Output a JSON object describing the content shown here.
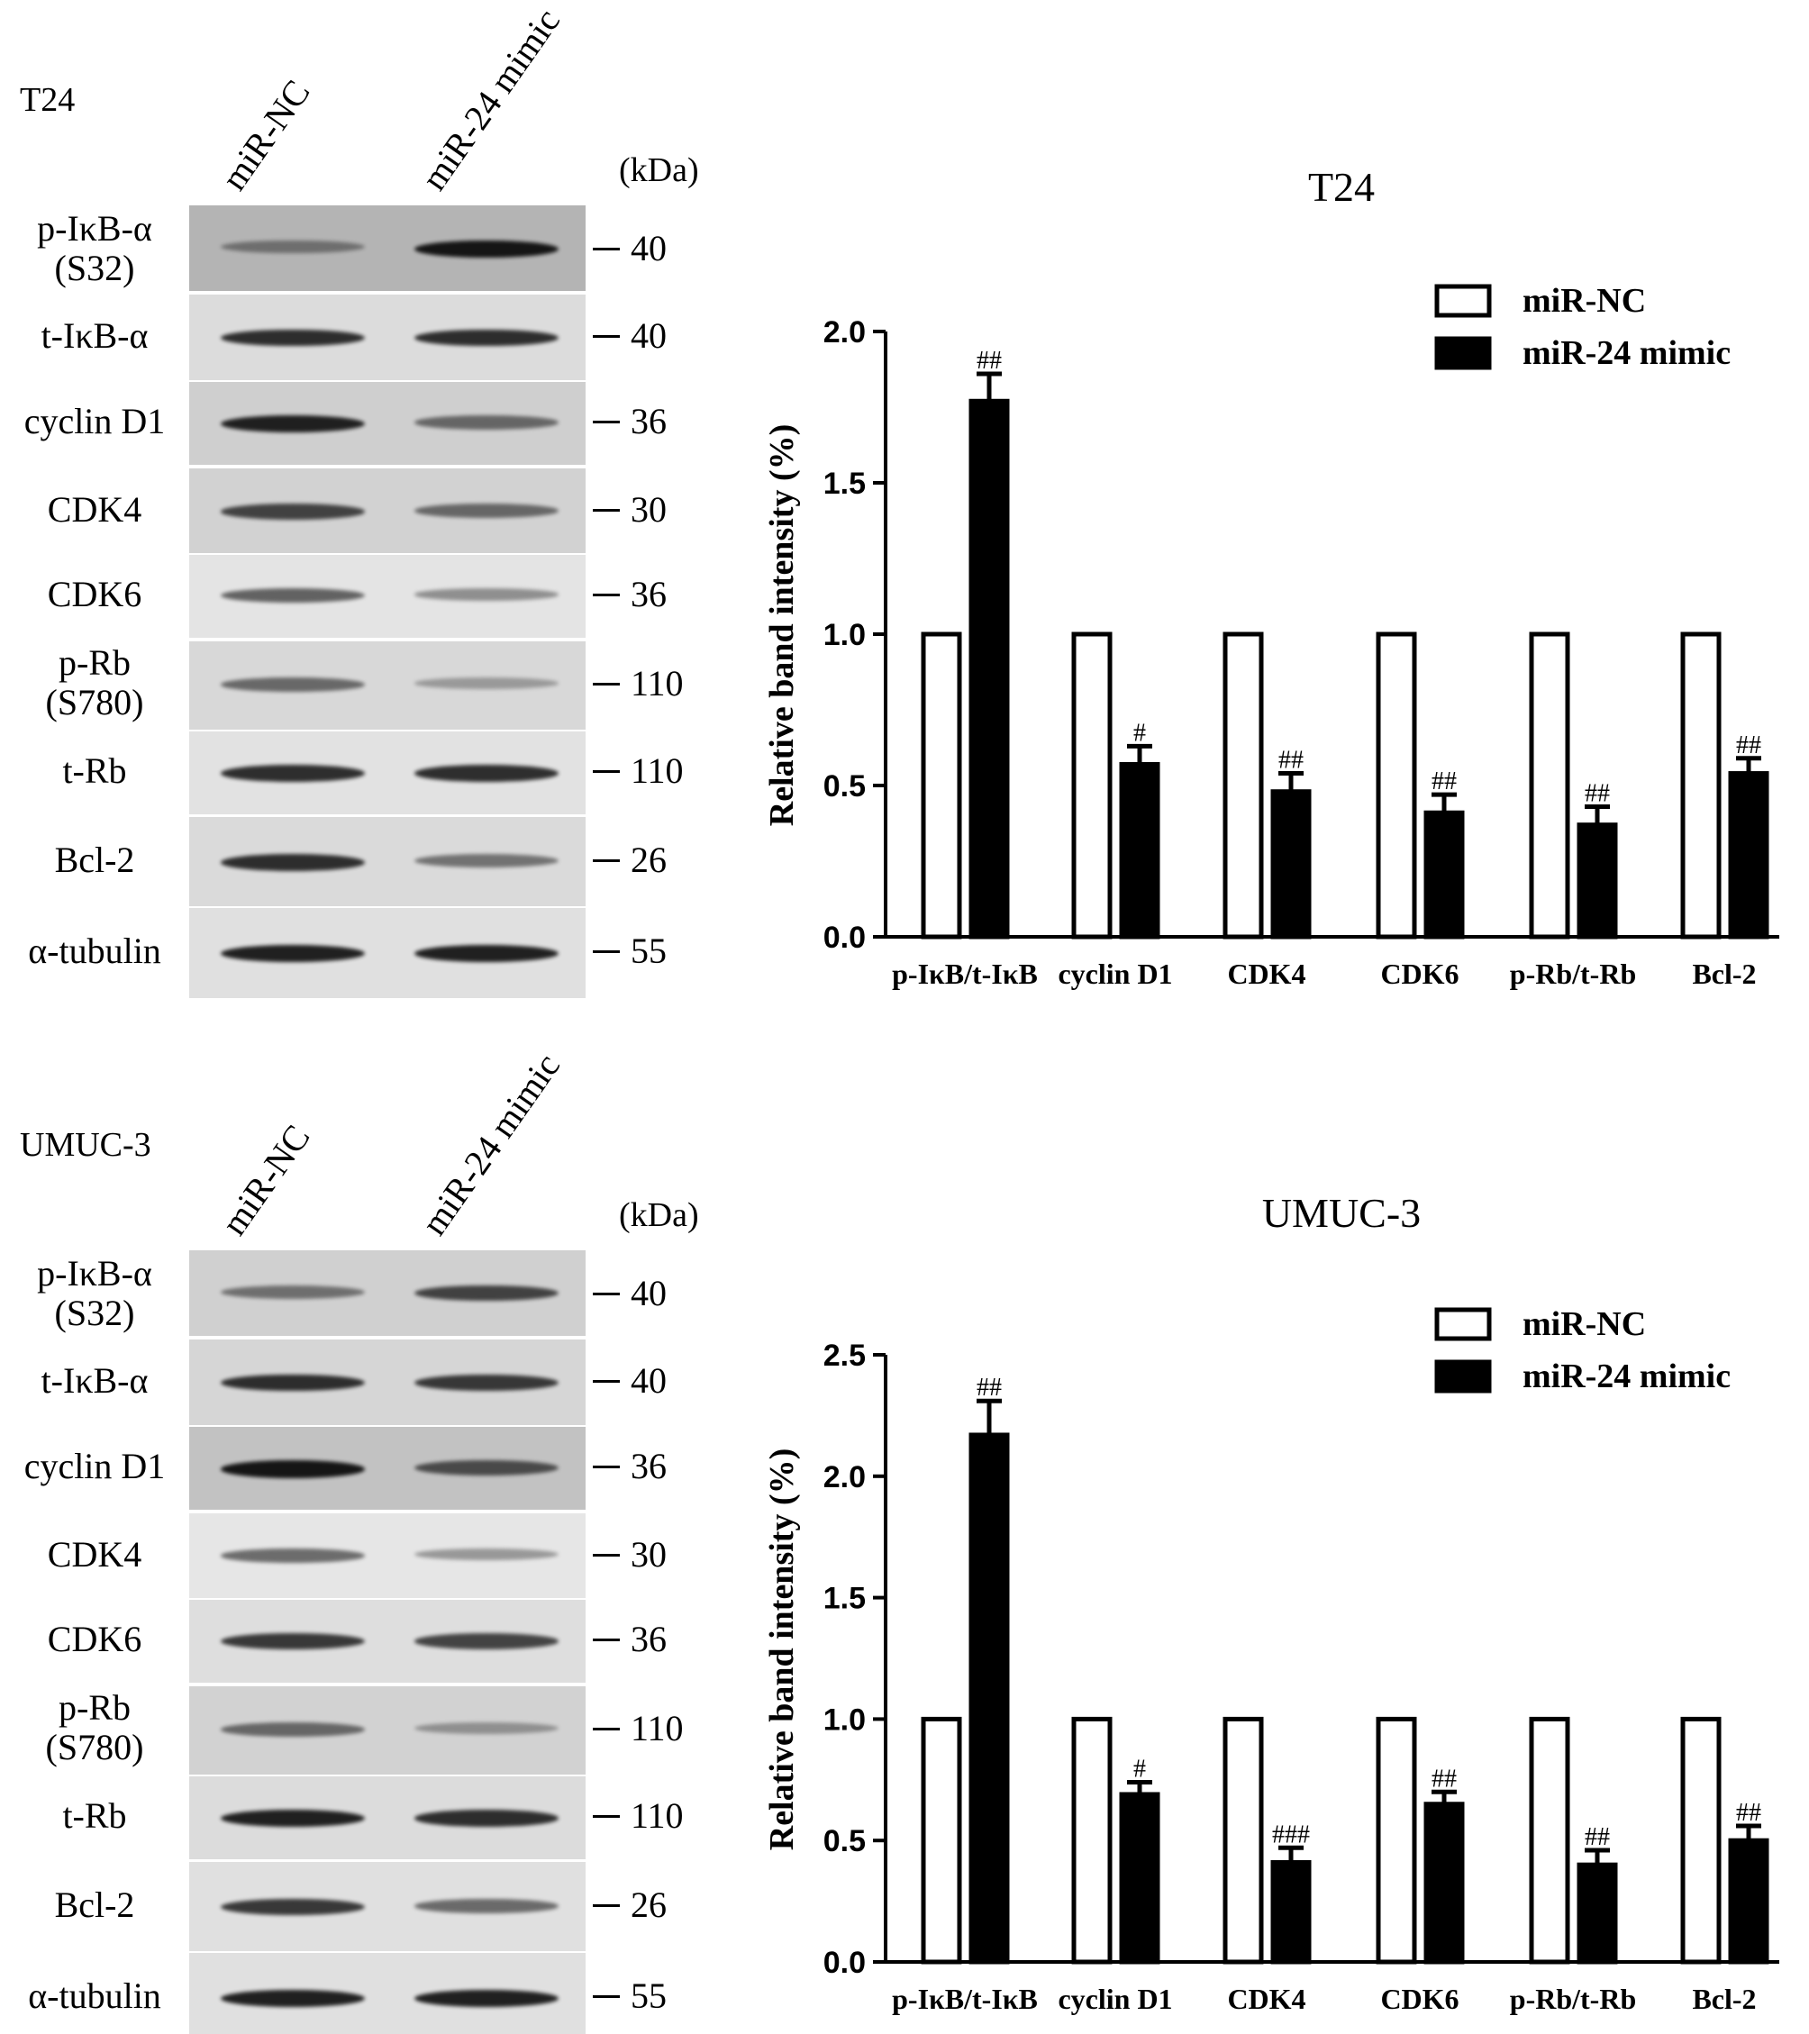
{
  "panels": [
    {
      "cell_line": "T24",
      "lanes": [
        "miR-NC",
        "miR-24 mimic"
      ],
      "kda_label": "(kDa)",
      "blots": [
        {
          "label": [
            "p-IκB-α",
            "(S32)"
          ],
          "mw": "40",
          "nc": 0.45,
          "mimic": 0.95,
          "bg": "#b4b4b4"
        },
        {
          "label": [
            "t-IκB-α"
          ],
          "mw": "40",
          "nc": 0.85,
          "mimic": 0.85,
          "bg": "#dcdcdc"
        },
        {
          "label": [
            "cyclin D1"
          ],
          "mw": "36",
          "nc": 0.9,
          "mimic": 0.55,
          "bg": "#cfcfcf"
        },
        {
          "label": [
            "CDK4"
          ],
          "mw": "30",
          "nc": 0.75,
          "mimic": 0.55,
          "bg": "#d2d2d2"
        },
        {
          "label": [
            "CDK6"
          ],
          "mw": "36",
          "nc": 0.6,
          "mimic": 0.35,
          "bg": "#e4e4e4"
        },
        {
          "label": [
            "p-Rb",
            "(S780)"
          ],
          "mw": "110",
          "nc": 0.55,
          "mimic": 0.25,
          "bg": "#d8d8d8"
        },
        {
          "label": [
            "t-Rb"
          ],
          "mw": "110",
          "nc": 0.85,
          "mimic": 0.85,
          "bg": "#e2e2e2"
        },
        {
          "label": [
            "Bcl-2"
          ],
          "mw": "26",
          "nc": 0.85,
          "mimic": 0.5,
          "bg": "#dadada"
        },
        {
          "label": [
            "α-tubulin"
          ],
          "mw": "55",
          "nc": 0.9,
          "mimic": 0.9,
          "bg": "#e0e0e0"
        }
      ]
    },
    {
      "cell_line": "UMUC-3",
      "lanes": [
        "miR-NC",
        "miR-24 mimic"
      ],
      "kda_label": "(kDa)",
      "blots": [
        {
          "label": [
            "p-IκB-α",
            "(S32)"
          ],
          "mw": "40",
          "nc": 0.5,
          "mimic": 0.75,
          "bg": "#d0d0d0"
        },
        {
          "label": [
            "t-IκB-α"
          ],
          "mw": "40",
          "nc": 0.85,
          "mimic": 0.8,
          "bg": "#d6d6d6"
        },
        {
          "label": [
            "cyclin D1"
          ],
          "mw": "36",
          "nc": 0.95,
          "mimic": 0.7,
          "bg": "#c2c2c2"
        },
        {
          "label": [
            "CDK4"
          ],
          "mw": "30",
          "nc": 0.55,
          "mimic": 0.3,
          "bg": "#e6e6e6"
        },
        {
          "label": [
            "CDK6"
          ],
          "mw": "36",
          "nc": 0.8,
          "mimic": 0.75,
          "bg": "#dedede"
        },
        {
          "label": [
            "p-Rb",
            "(S780)"
          ],
          "mw": "110",
          "nc": 0.55,
          "mimic": 0.3,
          "bg": "#d2d2d2"
        },
        {
          "label": [
            "t-Rb"
          ],
          "mw": "110",
          "nc": 0.9,
          "mimic": 0.85,
          "bg": "#dcdcdc"
        },
        {
          "label": [
            "Bcl-2"
          ],
          "mw": "26",
          "nc": 0.8,
          "mimic": 0.55,
          "bg": "#e0e0e0"
        },
        {
          "label": [
            "α-tubulin"
          ],
          "mw": "55",
          "nc": 0.9,
          "mimic": 0.9,
          "bg": "#e0e0e0"
        }
      ]
    }
  ],
  "chart_data": [
    {
      "type": "bar",
      "title": "T24",
      "ylabel": "Relative band intensity (%)",
      "xlabel": "",
      "ylim": [
        0,
        2.0
      ],
      "yticks": [
        "0.0",
        "0.5",
        "1.0",
        "1.5",
        "2.0"
      ],
      "categories": [
        "p-IκB/t-IκB",
        "cyclin D1",
        "CDK4",
        "CDK6",
        "p-Rb/t-Rb",
        "Bcl-2"
      ],
      "series": [
        {
          "name": "miR-NC",
          "values": [
            1.0,
            1.0,
            1.0,
            1.0,
            1.0,
            1.0
          ],
          "errors": [
            0,
            0,
            0,
            0,
            0,
            0
          ],
          "fill": "#ffffff"
        },
        {
          "name": "miR-24 mimic",
          "values": [
            1.77,
            0.57,
            0.48,
            0.41,
            0.37,
            0.54
          ],
          "errors": [
            0.09,
            0.06,
            0.06,
            0.06,
            0.06,
            0.05
          ],
          "fill": "#000000"
        }
      ],
      "significance": [
        "##",
        "#",
        "##",
        "##",
        "##",
        "##"
      ],
      "legend_position": "top-right",
      "grid": false
    },
    {
      "type": "bar",
      "title": "UMUC-3",
      "ylabel": "Relative band intensity (%)",
      "xlabel": "",
      "ylim": [
        0,
        2.5
      ],
      "yticks": [
        "0.0",
        "0.5",
        "1.0",
        "1.5",
        "2.0",
        "2.5"
      ],
      "categories": [
        "p-IκB/t-IκB",
        "cyclin D1",
        "CDK4",
        "CDK6",
        "p-Rb/t-Rb",
        "Bcl-2"
      ],
      "series": [
        {
          "name": "miR-NC",
          "values": [
            1.0,
            1.0,
            1.0,
            1.0,
            1.0,
            1.0
          ],
          "errors": [
            0,
            0,
            0,
            0,
            0,
            0
          ],
          "fill": "#ffffff"
        },
        {
          "name": "miR-24 mimic",
          "values": [
            2.17,
            0.69,
            0.41,
            0.65,
            0.4,
            0.5
          ],
          "errors": [
            0.14,
            0.05,
            0.06,
            0.05,
            0.06,
            0.06
          ],
          "fill": "#000000"
        }
      ],
      "significance": [
        "##",
        "#",
        "###",
        "##",
        "##",
        "##"
      ],
      "legend_position": "top-right",
      "grid": false
    }
  ]
}
